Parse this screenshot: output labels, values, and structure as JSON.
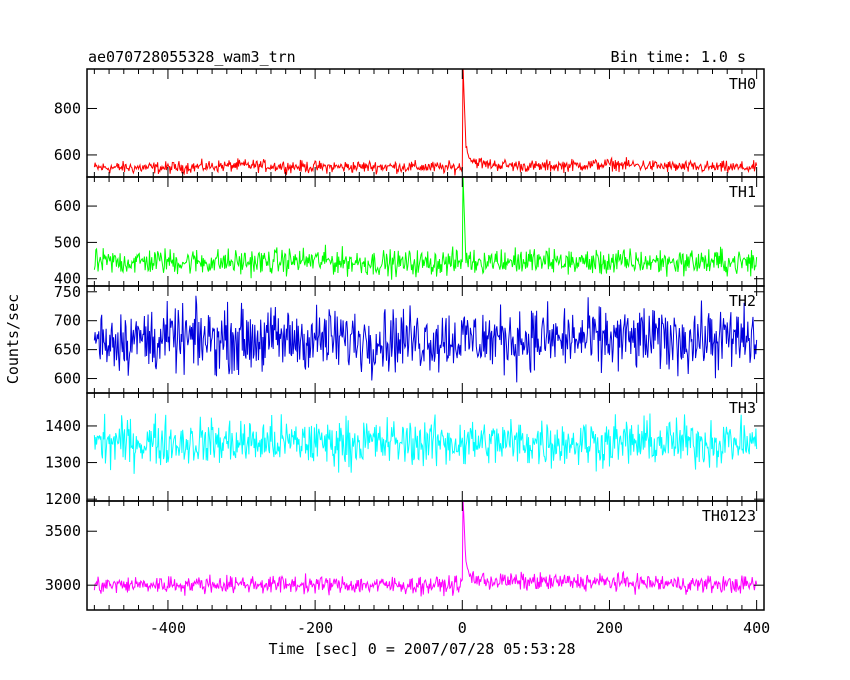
{
  "chart_data": {
    "type": "line",
    "title": "ae070728055328_wam3_trn",
    "bin_time_label": "Bin time: 1.0 s",
    "xlabel": "Time [sec] 0 = 2007/07/28 05:53:28",
    "ylabel": "Counts/sec",
    "xlim": [
      -510,
      410
    ],
    "x_ticks": [
      -400,
      -200,
      0,
      200,
      400
    ],
    "panels": [
      {
        "name": "TH0",
        "color": "#ff0000",
        "ylim": [
          505,
          970
        ],
        "y_ticks": [
          600,
          800
        ],
        "baseline": 545,
        "noise": 16,
        "x": [
          -500,
          -400,
          -300,
          -200,
          -100,
          -10,
          0,
          1,
          5,
          10,
          30,
          100,
          200,
          300,
          400
        ],
        "y": [
          545,
          545,
          555,
          548,
          550,
          545,
          548,
          980,
          640,
          580,
          560,
          550,
          560,
          548,
          545
        ]
      },
      {
        "name": "TH1",
        "color": "#00ff00",
        "ylim": [
          380,
          680
        ],
        "y_ticks": [
          400,
          500,
          600
        ],
        "baseline": 445,
        "noise": 22,
        "x": [
          -500,
          -400,
          -300,
          -200,
          -100,
          -10,
          0,
          1,
          5,
          100,
          200,
          300,
          400
        ],
        "y": [
          445,
          448,
          445,
          450,
          442,
          445,
          445,
          690,
          450,
          448,
          445,
          447,
          445
        ]
      },
      {
        "name": "TH2",
        "color": "#0000dd",
        "ylim": [
          575,
          760
        ],
        "y_ticks": [
          600,
          650,
          700,
          750
        ],
        "baseline": 668,
        "noise": 34,
        "x": [
          -500,
          -250,
          0,
          250,
          400
        ],
        "y": [
          668,
          668,
          668,
          668,
          668
        ]
      },
      {
        "name": "TH3",
        "color": "#00ffff",
        "ylim": [
          1195,
          1490
        ],
        "y_ticks": [
          1200,
          1300,
          1400
        ],
        "baseline": 1355,
        "noise": 40,
        "x": [
          -500,
          -250,
          0,
          250,
          400
        ],
        "y": [
          1355,
          1355,
          1355,
          1355,
          1355
        ]
      },
      {
        "name": "TH0123",
        "color": "#ff00ff",
        "ylim": [
          2770,
          3780
        ],
        "y_ticks": [
          3000,
          3500
        ],
        "baseline": 3005,
        "noise": 50,
        "x": [
          -500,
          -400,
          -300,
          -200,
          -100,
          -10,
          0,
          1,
          5,
          10,
          30,
          100,
          200,
          300,
          400
        ],
        "y": [
          3000,
          3005,
          3010,
          3005,
          3000,
          3000,
          3005,
          3790,
          3200,
          3080,
          3040,
          3030,
          3030,
          3010,
          3005
        ]
      }
    ]
  }
}
